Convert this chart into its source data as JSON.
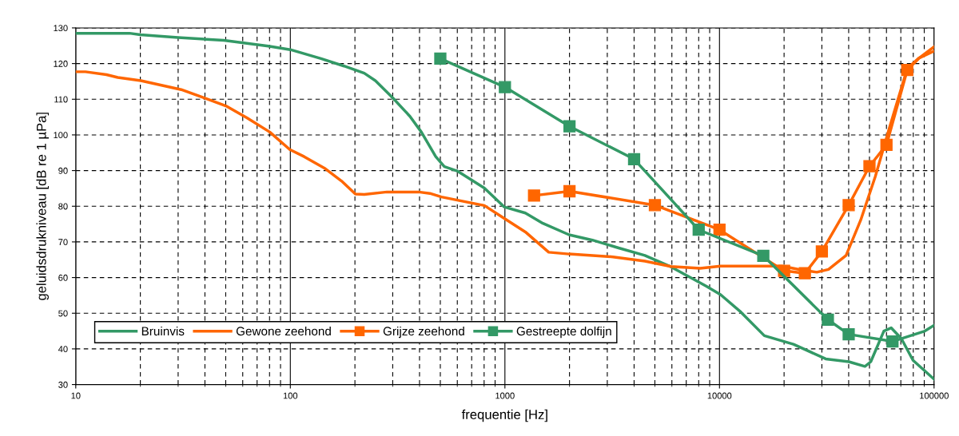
{
  "chart_data": {
    "type": "line",
    "xlabel": "frequentie [Hz]",
    "ylabel": "geluidsdrukniveau [dB re 1 µPa]",
    "log": "x",
    "xlim": [
      10,
      100000
    ],
    "xticks": [
      10,
      100,
      1000,
      10000,
      100000
    ],
    "ylim": [
      30,
      130
    ],
    "yticks": [
      30,
      40,
      50,
      60,
      70,
      80,
      90,
      100,
      110,
      120,
      130
    ],
    "grid": true,
    "legend": "bottom left",
    "series": [
      {
        "name": "Bruinvis",
        "color": "#339966",
        "marker": "none",
        "x": [
          10,
          17.8,
          20,
          30,
          49,
          79,
          100,
          139,
          178,
          221,
          249,
          300,
          361,
          408,
          476,
          522,
          599,
          802,
          993,
          1245,
          1503,
          1991,
          2557,
          3388,
          4488,
          5945,
          8660,
          10120,
          12590,
          16180,
          22120,
          31260,
          40090,
          47640,
          50700,
          58350,
          63100,
          70400,
          79800,
          100000
        ],
        "values": [
          128.5,
          128.5,
          128.1,
          127.3,
          126.5,
          124.9,
          123.9,
          121.4,
          119.3,
          117.3,
          115.2,
          110.4,
          105.2,
          100.8,
          93.9,
          91.1,
          89.9,
          85.1,
          79.8,
          78.1,
          75.2,
          72.0,
          70.5,
          68.3,
          66.2,
          63.0,
          57.6,
          55.2,
          50.3,
          43.7,
          41.3,
          37.2,
          36.4,
          35.1,
          36.4,
          45.0,
          45.9,
          42.9,
          36.8,
          31.5
        ]
      },
      {
        "name": "Gewone zeehond",
        "color": "#ff6600",
        "marker": "none",
        "x": [
          10,
          11.1,
          13.9,
          15.7,
          20.1,
          31,
          39.5,
          50.6,
          62.7,
          80.2,
          99.4,
          116,
          144,
          173,
          201,
          221,
          282,
          396,
          447,
          506,
          802,
          993,
          1245,
          1600,
          1991,
          3187,
          4488,
          5945,
          8128,
          10120,
          19540,
          24320,
          28440,
          32210,
          38900,
          45500,
          53200,
          62100,
          75000,
          84900,
          100000
        ],
        "values": [
          117.7,
          117.7,
          116.9,
          116.1,
          115.2,
          112.7,
          110.4,
          108.0,
          104.8,
          100.8,
          95.9,
          93.9,
          90.7,
          87.1,
          83.4,
          83.3,
          84.0,
          84.0,
          83.6,
          82.6,
          80.2,
          76.6,
          72.8,
          67.1,
          66.6,
          65.8,
          64.6,
          63.1,
          62.6,
          63.2,
          63.2,
          62.1,
          61.5,
          62.3,
          66.2,
          76.1,
          88.3,
          102.2,
          118.6,
          121.5,
          123.5
        ]
      },
      {
        "name": "Grijze zeehond",
        "color": "#ff6600",
        "marker": "square",
        "x": [
          1367,
          2000,
          5000,
          10000,
          20000,
          25000,
          30000,
          40000,
          50000,
          60000,
          75000
        ],
        "values": [
          83.0,
          84.2,
          80.3,
          73.4,
          61.9,
          61.2,
          67.3,
          80.3,
          91.2,
          97.2,
          118.2
        ]
      },
      {
        "color": "#ff6600",
        "marker": "none",
        "x": [
          75000,
          85000,
          100000
        ],
        "values": [
          118.2,
          121.5,
          124.7
        ]
      },
      {
        "name": "Gestreepte dolfijn",
        "color": "#339966",
        "marker": "square",
        "x": [
          500,
          1000,
          2000,
          4000,
          8000,
          16000,
          32000,
          40000,
          64000
        ],
        "values": [
          121.4,
          113.4,
          102.4,
          93.2,
          73.4,
          66.1,
          48.2,
          44.1,
          42.1
        ]
      },
      {
        "color": "#339966",
        "marker": "none",
        "x": [
          64000,
          90600,
          100000
        ],
        "values": [
          42.1,
          45.0,
          46.6
        ]
      }
    ]
  }
}
